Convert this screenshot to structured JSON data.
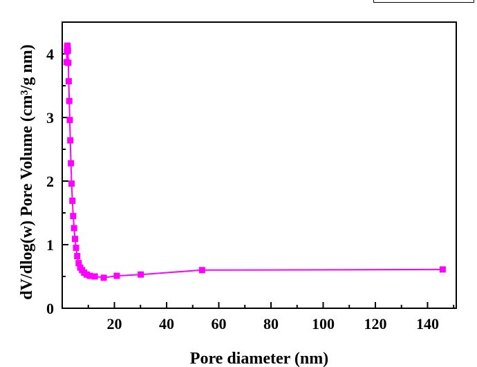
{
  "chart_data": {
    "type": "line",
    "xlabel": "Pore diameter (nm)",
    "ylabel": "dV/dlog(w) Pore Volume (cm³/g nm)",
    "xlim": [
      0,
      151
    ],
    "ylim": [
      0,
      4.5
    ],
    "x_ticks": [
      20,
      40,
      60,
      80,
      100,
      120,
      140
    ],
    "y_ticks": [
      0,
      1,
      2,
      3,
      4
    ],
    "grid": false,
    "legend": "none",
    "series": [
      {
        "color": "#ff00ff",
        "marker": "square",
        "x": [
          1.7,
          1.8,
          1.9,
          2.0,
          2.1,
          2.2,
          2.35,
          2.5,
          2.7,
          2.9,
          3.1,
          3.35,
          3.6,
          3.9,
          4.2,
          4.55,
          4.9,
          5.3,
          5.75,
          6.3,
          6.9,
          7.6,
          8.4,
          9.4,
          10.6,
          12.5,
          15.9,
          20.9,
          30.1,
          53.6,
          145.8
        ],
        "y": [
          3.87,
          4.04,
          4.1,
          4.13,
          4.09,
          4.05,
          3.86,
          3.57,
          3.26,
          2.96,
          2.64,
          2.28,
          1.96,
          1.69,
          1.45,
          1.26,
          1.09,
          0.95,
          0.82,
          0.71,
          0.64,
          0.6,
          0.56,
          0.53,
          0.51,
          0.5,
          0.48,
          0.51,
          0.53,
          0.6,
          0.61
        ]
      }
    ]
  }
}
